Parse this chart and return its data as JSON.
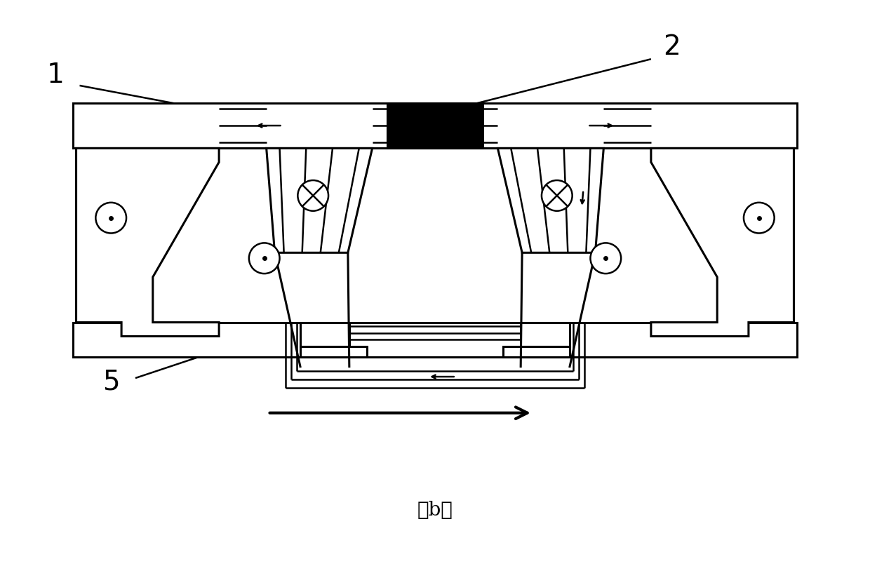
{
  "title": "（b）",
  "label_1": "1",
  "label_2": "2",
  "label_5": "5",
  "bg_color": "#ffffff",
  "line_color": "#000000",
  "lw": 1.8,
  "lw_thick": 2.2,
  "fig_width": 12.4,
  "fig_height": 8.07,
  "dpi": 100
}
